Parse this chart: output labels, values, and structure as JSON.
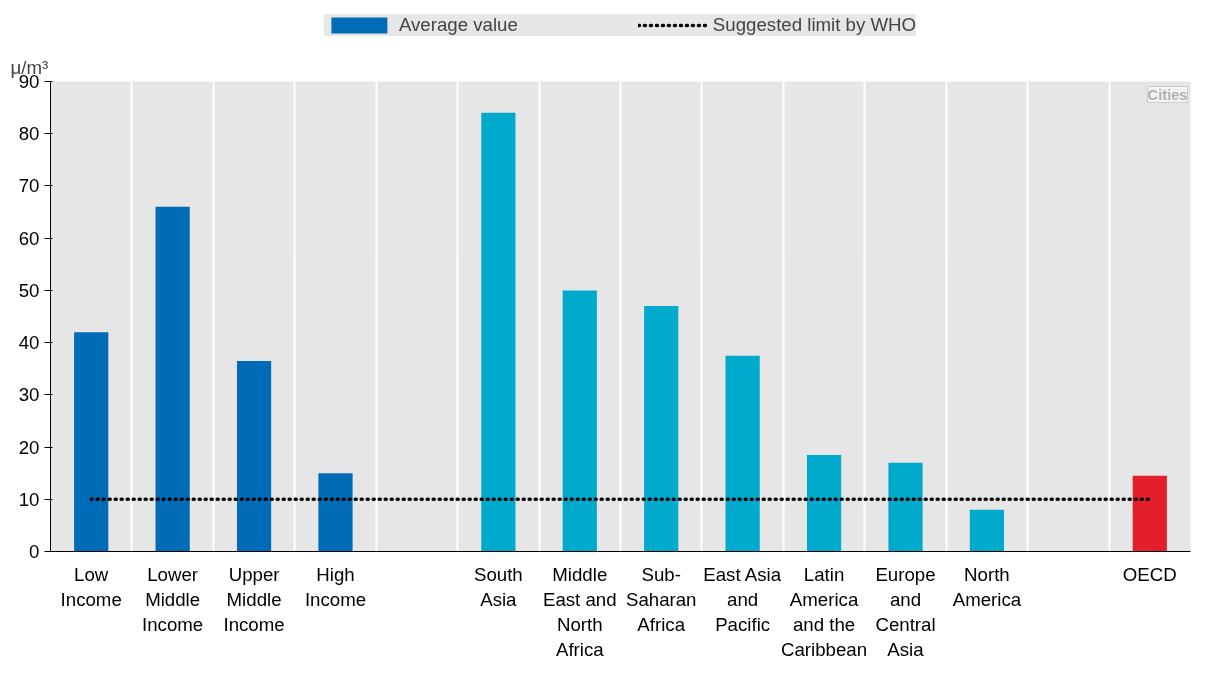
{
  "chart_data": {
    "type": "bar",
    "ylabel": "μ/m³",
    "categories": [
      "Low Income",
      "Lower Middle Income",
      "Upper Middle Income",
      "High Income",
      null,
      "South Asia",
      "Middle East and North Africa",
      "Sub-Saharan Africa",
      "East Asia and Pacific",
      "Latin America and the Caribbean",
      "Europe and Central Asia",
      "North America",
      null,
      "OECD"
    ],
    "series": [
      {
        "name": "Average value",
        "colors": [
          "#006bb6",
          "#006bb6",
          "#006bb6",
          "#006bb6",
          null,
          "#00aacc",
          "#00aacc",
          "#00aacc",
          "#00aacc",
          "#00aacc",
          "#00aacc",
          "#00aacc",
          null,
          "#e3202a"
        ],
        "values": [
          42,
          66,
          36.5,
          15,
          null,
          84,
          50,
          47,
          37.5,
          18.5,
          17,
          8,
          null,
          14.5
        ]
      },
      {
        "name": "Suggested limit by WHO",
        "type": "line",
        "color": "#000000",
        "line_style": "dotted",
        "values": [
          10,
          10,
          10,
          10,
          10,
          10,
          10,
          10,
          10,
          10,
          10,
          10,
          10,
          10
        ]
      }
    ],
    "ylim": [
      0,
      90
    ],
    "yticks": [
      0,
      10,
      20,
      30,
      40,
      50,
      60,
      70,
      80,
      90
    ],
    "grid": "x",
    "legend": "top",
    "annotations": [
      "Cities"
    ]
  }
}
